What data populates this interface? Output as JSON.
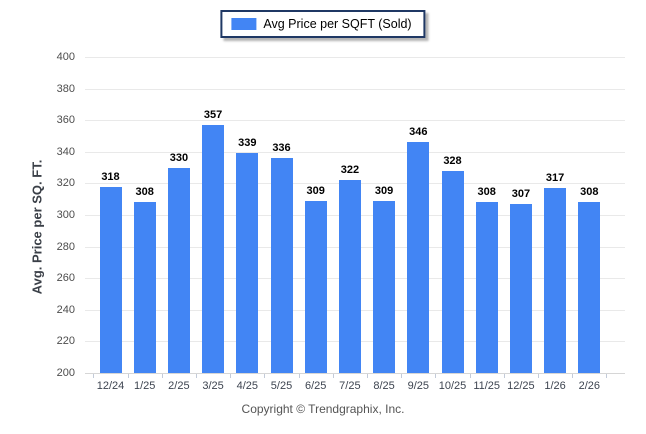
{
  "legend": {
    "label": "Avg Price per SQFT (Sold)",
    "swatch_color": "#4285F4",
    "border_color": "#1f3864"
  },
  "footer": {
    "text": "Copyright © Trendgraphix, Inc."
  },
  "chart_data": {
    "type": "bar",
    "title": "",
    "categories": [
      "12/24",
      "1/25",
      "2/25",
      "3/25",
      "4/25",
      "5/25",
      "6/25",
      "7/25",
      "8/25",
      "9/25",
      "10/25",
      "11/25",
      "12/25",
      "1/26",
      "2/26"
    ],
    "series": [
      {
        "name": "Avg Price per SQFT (Sold)",
        "values": [
          318,
          308,
          330,
          357,
          339,
          336,
          309,
          322,
          309,
          346,
          328,
          308,
          307,
          317,
          308
        ]
      }
    ],
    "xlabel": "",
    "ylabel": "Avg. Price per SQ. FT.",
    "ylim": [
      200,
      400
    ],
    "ytick_step": 20,
    "yticks": [
      200,
      220,
      240,
      260,
      280,
      300,
      320,
      340,
      360,
      380,
      400
    ],
    "grid": true,
    "value_labels": true,
    "bar_color": "#4285F4",
    "legend_position": "top-center"
  }
}
